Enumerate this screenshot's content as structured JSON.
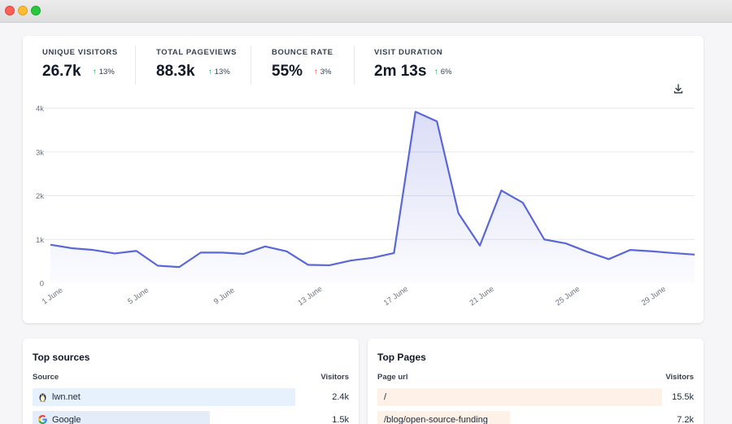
{
  "window": {
    "controls": [
      "close",
      "minimize",
      "maximize"
    ]
  },
  "stats": [
    {
      "label": "UNIQUE VISITORS",
      "value": "26.7k",
      "change": "13%",
      "direction": "up",
      "change_color": "#16a34a"
    },
    {
      "label": "TOTAL PAGEVIEWS",
      "value": "88.3k",
      "change": "13%",
      "direction": "up",
      "change_color": "#16a34a"
    },
    {
      "label": "BOUNCE RATE",
      "value": "55%",
      "change": "3%",
      "direction": "up",
      "change_color": "#ef4444"
    },
    {
      "label": "VISIT DURATION",
      "value": "2m 13s",
      "change": "6%",
      "direction": "up",
      "change_color": "#16a34a"
    }
  ],
  "download": {
    "icon": "download-icon"
  },
  "chart_data": {
    "type": "area",
    "title": "",
    "xlabel": "",
    "ylabel": "",
    "ylim": [
      0,
      4000
    ],
    "yticks": [
      0,
      1000,
      2000,
      3000,
      4000
    ],
    "ytick_labels": [
      "0",
      "1k",
      "2k",
      "3k",
      "4k"
    ],
    "x": [
      "1 June",
      "2 June",
      "3 June",
      "4 June",
      "5 June",
      "6 June",
      "7 June",
      "8 June",
      "9 June",
      "10 June",
      "11 June",
      "12 June",
      "13 June",
      "14 June",
      "15 June",
      "16 June",
      "17 June",
      "18 June",
      "19 June",
      "20 June",
      "21 June",
      "22 June",
      "23 June",
      "24 June",
      "25 June",
      "26 June",
      "27 June",
      "28 June",
      "29 June",
      "30 June",
      "31 June"
    ],
    "xtick_labels": [
      "1 June",
      "5 June",
      "9 June",
      "13 June",
      "17 June",
      "21 June",
      "25 June",
      "29 June"
    ],
    "xtick_indices": [
      0,
      4,
      8,
      12,
      16,
      20,
      24,
      28
    ],
    "series": [
      {
        "name": "Visitors",
        "color": "#5a67d8",
        "values": [
          880,
          800,
          760,
          680,
          740,
          400,
          370,
          700,
          700,
          670,
          840,
          730,
          420,
          410,
          520,
          580,
          690,
          3920,
          3700,
          1600,
          860,
          2120,
          1840,
          1000,
          910,
          720,
          550,
          760,
          730,
          690,
          655
        ]
      }
    ]
  },
  "top_sources": {
    "title": "Top sources",
    "col_source": "Source",
    "col_visitors": "Visitors",
    "rows": [
      {
        "label": "lwn.net",
        "value": "2.4k",
        "icon": "penguin-icon",
        "fill": 0.83
      },
      {
        "label": "Google",
        "value": "1.5k",
        "icon": "google-icon",
        "fill": 0.56
      }
    ]
  },
  "top_pages": {
    "title": "Top Pages",
    "col_page": "Page url",
    "col_visitors": "Visitors",
    "rows": [
      {
        "label": "/",
        "value": "15.5k",
        "fill": 0.9
      },
      {
        "label": "/blog/open-source-funding",
        "value": "7.2k",
        "fill": 0.42
      }
    ]
  }
}
